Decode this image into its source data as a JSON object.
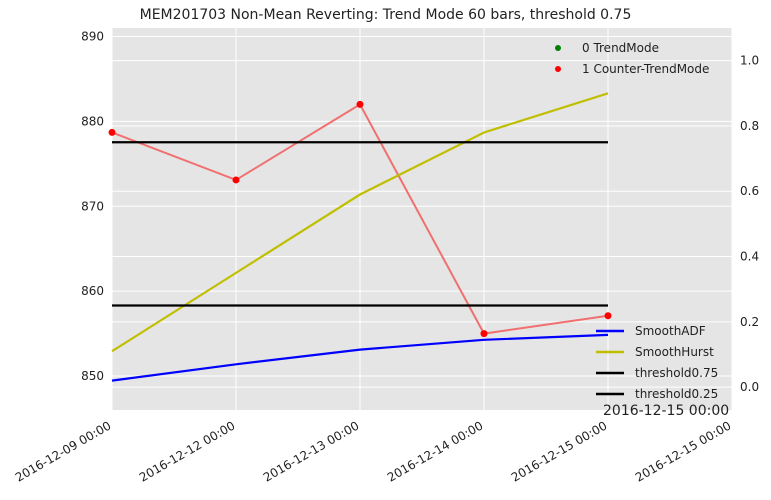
{
  "chart_data": {
    "type": "line",
    "title": "MEM201703 Non-Mean Reverting: Trend Mode 60 bars, threshold 0.75",
    "offset_text": "2016-12-15 00:00",
    "x_ticks": [
      "2016-12-09 00:00",
      "2016-12-12 00:00",
      "2016-12-13 00:00",
      "2016-12-14 00:00",
      "2016-12-15 00:00",
      "2016-12-15 00:00"
    ],
    "left_axis": {
      "ylim": [
        846,
        891
      ],
      "ticks": [
        850,
        860,
        870,
        880,
        890
      ]
    },
    "right_axis": {
      "ylim": [
        -0.07,
        1.1
      ],
      "ticks": [
        "0.0",
        "0.2",
        "0.4",
        "0.6",
        "0.8",
        "1.0"
      ]
    },
    "grid": true,
    "price_line": {
      "axis": "left",
      "color": "#f07070",
      "values": [
        878.7,
        873.1,
        882.0,
        855.0,
        857.1
      ]
    },
    "scatter_series": [
      {
        "name": "0 TrendMode",
        "color": "#008000",
        "axis": "left",
        "points": []
      },
      {
        "name": "1 Counter-TrendMode",
        "color": "#ff0000",
        "axis": "left",
        "points": [
          [
            0,
            878.7
          ],
          [
            1,
            873.1
          ],
          [
            2,
            882.0
          ],
          [
            3,
            855.0
          ],
          [
            4,
            857.1
          ]
        ]
      }
    ],
    "series": [
      {
        "name": "SmoothADF",
        "color": "#0000ff",
        "axis": "right",
        "values": [
          0.02,
          0.07,
          0.115,
          0.145,
          0.16
        ]
      },
      {
        "name": "SmoothHurst",
        "color": "#bfbf00",
        "axis": "right",
        "values": [
          0.11,
          0.35,
          0.59,
          0.78,
          0.9
        ]
      },
      {
        "name": "threshold0.75",
        "color": "#000000",
        "axis": "right",
        "values": [
          0.75,
          0.75,
          0.75,
          0.75,
          0.75
        ]
      },
      {
        "name": "threshold0.25",
        "color": "#000000",
        "axis": "right",
        "values": [
          0.25,
          0.25,
          0.25,
          0.25,
          0.25
        ]
      }
    ],
    "legend_top": "top-right",
    "legend_bottom": "bottom-right"
  }
}
